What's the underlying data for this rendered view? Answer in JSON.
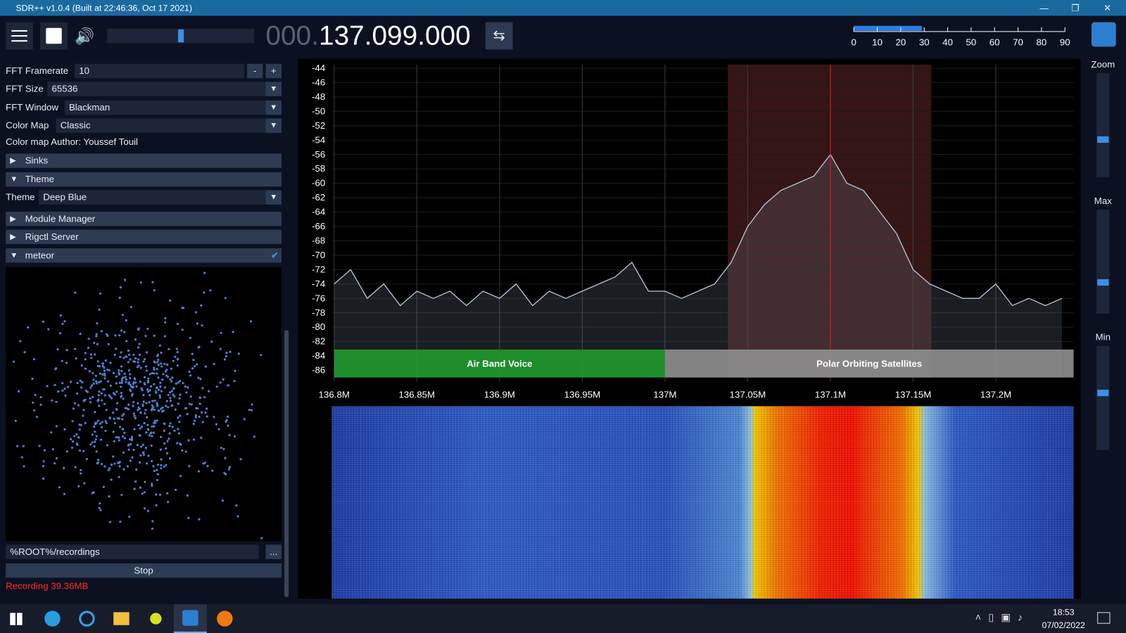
{
  "window": {
    "title": "SDR++ v1.0.4 (Built at 22:46:36, Oct 17 2021)"
  },
  "toolbar": {
    "frequency_prefix": "000.",
    "frequency": "137.099.000",
    "snr_meter": {
      "range": [
        0,
        90
      ],
      "ticks": [
        0,
        10,
        20,
        30,
        40,
        50,
        60,
        70,
        80,
        90
      ],
      "value": 29
    }
  },
  "sidebar": {
    "fft_framerate": {
      "label": "FFT Framerate",
      "value": 10,
      "minus": "-",
      "plus": "+"
    },
    "fft_size": {
      "label": "FFT Size",
      "value": 65536
    },
    "fft_window": {
      "label": "FFT Window",
      "value": "Blackman"
    },
    "color_map": {
      "label": "Color Map",
      "value": "Classic"
    },
    "color_map_author": "Color map Author: Youssef Touil",
    "sections": [
      "Sinks",
      "Theme",
      "Module Manager",
      "Rigctl Server",
      "meteor"
    ],
    "theme": {
      "label": "Theme",
      "value": "Deep Blue"
    },
    "recording_path": "%ROOT%/recordings",
    "browse": "...",
    "stop": "Stop",
    "recording_status": "Recording 39.36MB"
  },
  "sliders": {
    "zoom": "Zoom",
    "max": "Max",
    "min": "Min"
  },
  "chart_data": {
    "type": "line",
    "color": "#b9c6dc",
    "grid": true,
    "x": [
      136.8,
      136.81,
      136.82,
      136.83,
      136.84,
      136.85,
      136.86,
      136.87,
      136.88,
      136.89,
      136.9,
      136.91,
      136.92,
      136.93,
      136.94,
      136.95,
      136.96,
      136.97,
      136.98,
      136.99,
      137.0,
      137.01,
      137.02,
      137.03,
      137.04,
      137.05,
      137.06,
      137.07,
      137.08,
      137.09,
      137.1,
      137.11,
      137.12,
      137.13,
      137.14,
      137.15,
      137.16,
      137.17,
      137.18,
      137.19,
      137.2,
      137.21,
      137.22,
      137.23,
      137.24
    ],
    "values": [
      -74,
      -72,
      -76,
      -74,
      -77,
      -75,
      -76,
      -75,
      -77,
      -75,
      -76,
      -74,
      -77,
      -75,
      -76,
      -75,
      -74,
      -73,
      -71,
      -75,
      -75,
      -76,
      -75,
      -74,
      -71,
      -66,
      -63,
      -61,
      -60,
      -59,
      -56,
      -60,
      -61,
      -64,
      -67,
      -72,
      -74,
      -75,
      -76,
      -76,
      -74,
      -77,
      -76,
      -77,
      -76
    ],
    "xlim": [
      136.799,
      137.247
    ],
    "ylim": [
      -87,
      -43.5
    ],
    "xticks": [
      {
        "value": 136.8,
        "label": "136.8M"
      },
      {
        "value": 136.85,
        "label": "136.85M"
      },
      {
        "value": 136.9,
        "label": "136.9M"
      },
      {
        "value": 136.95,
        "label": "136.95M"
      },
      {
        "value": 137,
        "label": "137M"
      },
      {
        "value": 137.05,
        "label": "137.05M"
      },
      {
        "value": 137.1,
        "label": "137.1M"
      },
      {
        "value": 137.15,
        "label": "137.15M"
      },
      {
        "value": 137.2,
        "label": "137.2M"
      }
    ],
    "yticks": [
      -44,
      -46,
      -48,
      -50,
      -52,
      -54,
      -56,
      -58,
      -60,
      -62,
      -64,
      -66,
      -68,
      -70,
      -72,
      -74,
      -76,
      -78,
      -80,
      -82,
      -84,
      -86
    ],
    "bands": [
      {
        "name": "Air Band Voice",
        "start": 136.8,
        "end": 137.0,
        "color": "#1f9a2e"
      },
      {
        "name": "Polar Orbiting Satellites",
        "start": 137.0,
        "end": 137.247,
        "color": "#8f8f8f"
      }
    ],
    "vfo": {
      "start": 137.038,
      "end": 137.161,
      "center": 137.1
    }
  },
  "taskbar": {
    "time": "18:53",
    "date": "07/02/2022"
  }
}
